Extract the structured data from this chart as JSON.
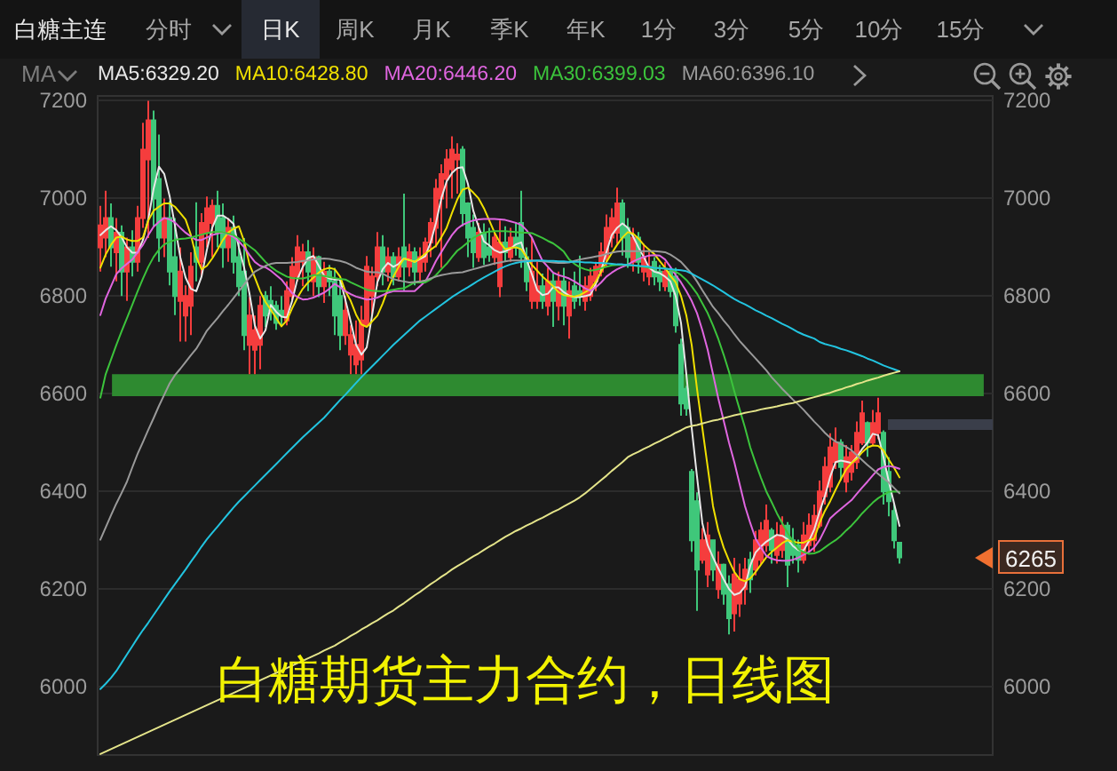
{
  "chart_data": {
    "type": "candlestick",
    "title": "白糖期货主力合约，日线图",
    "annotations": [
      "白糖主连",
      "分时",
      "日K",
      "周K",
      "月K",
      "季K",
      "年K",
      "1分",
      "3分",
      "5分",
      "10分",
      "15分",
      "MA",
      "6265"
    ],
    "categories": [
      null,
      null,
      null,
      null,
      null,
      null,
      null,
      null,
      null,
      null,
      null,
      null,
      null,
      null,
      null,
      null,
      null,
      null,
      null,
      null,
      null,
      null,
      null,
      null,
      null,
      null,
      null,
      null,
      null,
      null,
      null,
      null,
      null,
      null,
      null,
      null,
      null,
      null,
      null,
      null,
      null,
      null,
      null,
      null,
      null,
      null,
      null,
      null,
      null,
      null,
      null,
      null,
      null,
      null,
      null,
      null,
      null,
      null,
      null,
      null,
      null,
      null,
      null,
      null,
      null,
      null,
      null,
      null,
      null,
      null,
      null,
      null,
      null,
      null,
      null,
      null,
      null,
      null,
      null,
      null,
      null,
      null,
      null,
      null,
      null,
      null,
      null,
      null,
      null,
      null,
      null,
      null,
      null,
      null,
      null,
      null,
      null,
      null,
      null,
      null,
      null,
      null,
      null,
      null,
      null,
      null,
      null,
      null,
      null,
      null,
      null,
      null,
      null,
      null,
      null,
      null,
      null,
      null,
      null,
      null,
      null,
      null,
      null,
      null,
      null,
      null,
      null,
      null,
      null,
      null,
      null,
      null,
      null,
      null,
      null,
      null,
      null,
      null,
      null,
      null,
      null,
      null,
      null,
      null,
      null,
      null,
      null,
      null,
      null,
      null,
      null
    ],
    "ohlc": [
      [
        6900,
        6985,
        6850,
        6945
      ],
      [
        6920,
        7016,
        6880,
        6960
      ],
      [
        6960,
        6990,
        6860,
        6900
      ],
      [
        6890,
        6960,
        6830,
        6930
      ],
      [
        6930,
        6945,
        6800,
        6850
      ],
      [
        6850,
        6920,
        6790,
        6900
      ],
      [
        6900,
        6935,
        6840,
        6870
      ],
      [
        6870,
        6985,
        6850,
        6960
      ],
      [
        6960,
        7155,
        6940,
        7100
      ],
      [
        7080,
        7200,
        6919,
        7160
      ],
      [
        7160,
        7180,
        6943,
        7000
      ],
      [
        7040,
        7131,
        6870,
        6920
      ],
      [
        6920,
        7000,
        6880,
        6960
      ],
      [
        6960,
        6995,
        6822,
        6850
      ],
      [
        6880,
        6960,
        6761,
        6800
      ],
      [
        6790,
        6900,
        6707,
        6850
      ],
      [
        6760,
        6822,
        6707,
        6800
      ],
      [
        6780,
        6890,
        6720,
        6860
      ],
      [
        6900,
        6992,
        6830,
        6870
      ],
      [
        6870,
        6970,
        6840,
        6950
      ],
      [
        6930,
        7004,
        6900,
        6980
      ],
      [
        6950,
        6998,
        6880,
        6985
      ],
      [
        6985,
        7016,
        6900,
        6930
      ],
      [
        6960,
        6990,
        6858,
        6900
      ],
      [
        6900,
        6960,
        6870,
        6940
      ],
      [
        6940,
        6965,
        6846,
        6870
      ],
      [
        6880,
        6919,
        6800,
        6820
      ],
      [
        6850,
        6919,
        6689,
        6720
      ],
      [
        6700,
        6798,
        6640,
        6760
      ],
      [
        6690,
        6760,
        6640,
        6730
      ],
      [
        6700,
        6800,
        6650,
        6780
      ],
      [
        6800,
        6810,
        6737,
        6760
      ],
      [
        6790,
        6820,
        6750,
        6770
      ],
      [
        6780,
        6790,
        6731,
        6745
      ],
      [
        6770,
        6800,
        6740,
        6760
      ],
      [
        6750,
        6830,
        6740,
        6810
      ],
      [
        6800,
        6880,
        6790,
        6860
      ],
      [
        6840,
        6925,
        6830,
        6900
      ],
      [
        6870,
        6907,
        6820,
        6890
      ],
      [
        6890,
        6915,
        6810,
        6850
      ],
      [
        6830,
        6900,
        6800,
        6880
      ],
      [
        6880,
        6883,
        6798,
        6820
      ],
      [
        6820,
        6870,
        6786,
        6850
      ],
      [
        6850,
        6864,
        6800,
        6830
      ],
      [
        6830,
        6858,
        6720,
        6760
      ],
      [
        6800,
        6834,
        6689,
        6720
      ],
      [
        6720,
        6800,
        6700,
        6770
      ],
      [
        6680,
        6740,
        6640,
        6720
      ],
      [
        6660,
        6750,
        6640,
        6700
      ],
      [
        6670,
        6780,
        6640,
        6750
      ],
      [
        6740,
        6882,
        6737,
        6860
      ],
      [
        6800,
        6860,
        6760,
        6840
      ],
      [
        6840,
        6931,
        6820,
        6900
      ],
      [
        6900,
        6925,
        6822,
        6850
      ],
      [
        6850,
        6900,
        6830,
        6880
      ],
      [
        6880,
        6890,
        6822,
        6840
      ],
      [
        6840,
        6900,
        6830,
        6880
      ],
      [
        6900,
        7010,
        6810,
        6860
      ],
      [
        6860,
        6907,
        6840,
        6890
      ],
      [
        6890,
        6900,
        6822,
        6850
      ],
      [
        6850,
        6900,
        6830,
        6880
      ],
      [
        6870,
        6920,
        6850,
        6910
      ],
      [
        6910,
        6960,
        6880,
        6950
      ],
      [
        6940,
        7040,
        6900,
        7020
      ],
      [
        7000,
        7070,
        6858,
        7050
      ],
      [
        7040,
        7101,
        6980,
        7080
      ],
      [
        7060,
        7127,
        7000,
        7100
      ],
      [
        7080,
        7113,
        7010,
        7090
      ],
      [
        7100,
        7107,
        6943,
        6970
      ],
      [
        6990,
        6992,
        6880,
        6920
      ],
      [
        6940,
        6967,
        6858,
        6890
      ],
      [
        6880,
        6950,
        6870,
        6930
      ],
      [
        6930,
        6949,
        6864,
        6880
      ],
      [
        6900,
        6940,
        6870,
        6885
      ],
      [
        6880,
        6931,
        6864,
        6920
      ],
      [
        6820,
        6955,
        6798,
        6910
      ],
      [
        6910,
        6943,
        6870,
        6890
      ],
      [
        6880,
        6940,
        6870,
        6920
      ],
      [
        6920,
        6950,
        6883,
        6900
      ],
      [
        6950,
        7016,
        6858,
        6880
      ],
      [
        6880,
        6900,
        6810,
        6830
      ],
      [
        6790,
        6919,
        6774,
        6850
      ],
      [
        6790,
        6870,
        6774,
        6820
      ],
      [
        6820,
        6846,
        6774,
        6790
      ],
      [
        6780,
        6858,
        6760,
        6830
      ],
      [
        6830,
        6846,
        6737,
        6790
      ],
      [
        6780,
        6850,
        6750,
        6830
      ],
      [
        6830,
        6858,
        6740,
        6780
      ],
      [
        6760,
        6830,
        6713,
        6810
      ],
      [
        6820,
        6850,
        6774,
        6790
      ],
      [
        6810,
        6883,
        6780,
        6800
      ],
      [
        6790,
        6840,
        6770,
        6820
      ],
      [
        6800,
        6858,
        6790,
        6840
      ],
      [
        6830,
        6870,
        6810,
        6860
      ],
      [
        6850,
        6910,
        6840,
        6890
      ],
      [
        6880,
        6967,
        6860,
        6940
      ],
      [
        6920,
        6980,
        6900,
        6960
      ],
      [
        6930,
        7022,
        6907,
        6990
      ],
      [
        6990,
        6998,
        6883,
        6920
      ],
      [
        6940,
        6960,
        6858,
        6880
      ],
      [
        6870,
        6940,
        6850,
        6920
      ],
      [
        6920,
        6931,
        6846,
        6870
      ],
      [
        6850,
        6907,
        6830,
        6880
      ],
      [
        6840,
        6890,
        6822,
        6860
      ],
      [
        6870,
        6880,
        6822,
        6840
      ],
      [
        6850,
        6864,
        6810,
        6830
      ],
      [
        6820,
        6870,
        6810,
        6850
      ],
      [
        6850,
        6858,
        6798,
        6810
      ],
      [
        6840,
        6858,
        6725,
        6740
      ],
      [
        6700,
        6713,
        6555,
        6580
      ],
      [
        6610,
        6616,
        6555,
        6570
      ],
      [
        6440,
        6446,
        6276,
        6300
      ],
      [
        6380,
        6398,
        6155,
        6240
      ],
      [
        6260,
        6325,
        6252,
        6300
      ],
      [
        6230,
        6337,
        6204,
        6310
      ],
      [
        6300,
        6301,
        6216,
        6240
      ],
      [
        6200,
        6277,
        6180,
        6250
      ],
      [
        6250,
        6252,
        6168,
        6190
      ],
      [
        6210,
        6228,
        6107,
        6140
      ],
      [
        6150,
        6264,
        6113,
        6230
      ],
      [
        6170,
        6252,
        6143,
        6220
      ],
      [
        6200,
        6264,
        6168,
        6240
      ],
      [
        6260,
        6276,
        6192,
        6220
      ],
      [
        6240,
        6319,
        6228,
        6300
      ],
      [
        6260,
        6337,
        6250,
        6320
      ],
      [
        6290,
        6373,
        6276,
        6340
      ],
      [
        6320,
        6325,
        6252,
        6280
      ],
      [
        6270,
        6337,
        6252,
        6310
      ],
      [
        6280,
        6349,
        6264,
        6330
      ],
      [
        6330,
        6337,
        6204,
        6250
      ],
      [
        6300,
        6325,
        6252,
        6270
      ],
      [
        6290,
        6301,
        6234,
        6260
      ],
      [
        6260,
        6337,
        6252,
        6310
      ],
      [
        6290,
        6355,
        6276,
        6330
      ],
      [
        6300,
        6373,
        6276,
        6350
      ],
      [
        6330,
        6422,
        6325,
        6400
      ],
      [
        6390,
        6471,
        6373,
        6450
      ],
      [
        6410,
        6519,
        6398,
        6490
      ],
      [
        6460,
        6531,
        6446,
        6500
      ],
      [
        6500,
        6507,
        6422,
        6450
      ],
      [
        6420,
        6495,
        6398,
        6470
      ],
      [
        6440,
        6495,
        6422,
        6480
      ],
      [
        6460,
        6543,
        6446,
        6520
      ],
      [
        6500,
        6586,
        6495,
        6560
      ],
      [
        6540,
        6543,
        6471,
        6500
      ],
      [
        6500,
        6567,
        6495,
        6540
      ],
      [
        6520,
        6592,
        6507,
        6560
      ],
      [
        6520,
        6525,
        6373,
        6400
      ],
      [
        6440,
        6470,
        6349,
        6380
      ],
      [
        6360,
        6373,
        6283,
        6300
      ],
      [
        6295,
        6295,
        6252,
        6265
      ]
    ],
    "colors": [
      "#f53d3d",
      "#f53d3d",
      "#3fc77a",
      "#f53d3d",
      "#3fc77a",
      "#f53d3d",
      "#3fc77a",
      "#f53d3d",
      "#f53d3d",
      "#f53d3d",
      "#3fc77a",
      "#3fc77a",
      "#f53d3d",
      "#3fc77a",
      "#3fc77a",
      "#f53d3d",
      "#f53d3d",
      "#f53d3d",
      "#3fc77a",
      "#f53d3d",
      "#f53d3d",
      "#f53d3d",
      "#3fc77a",
      "#3fc77a",
      "#f53d3d",
      "#3fc77a",
      "#3fc77a",
      "#3fc77a",
      "#f53d3d",
      "#f53d3d",
      "#f53d3d",
      "#3fc77a",
      "#3fc77a",
      "#3fc77a",
      "#3fc77a",
      "#f53d3d",
      "#f53d3d",
      "#f53d3d",
      "#f53d3d",
      "#3fc77a",
      "#f53d3d",
      "#3fc77a",
      "#f53d3d",
      "#3fc77a",
      "#3fc77a",
      "#3fc77a",
      "#f53d3d",
      "#f53d3d",
      "#f53d3d",
      "#f53d3d",
      "#f53d3d",
      "#f53d3d",
      "#f53d3d",
      "#3fc77a",
      "#f53d3d",
      "#3fc77a",
      "#f53d3d",
      "#3fc77a",
      "#f53d3d",
      "#3fc77a",
      "#f53d3d",
      "#f53d3d",
      "#f53d3d",
      "#f53d3d",
      "#f53d3d",
      "#f53d3d",
      "#f53d3d",
      "#f53d3d",
      "#3fc77a",
      "#3fc77a",
      "#3fc77a",
      "#f53d3d",
      "#3fc77a",
      "#3fc77a",
      "#f53d3d",
      "#f53d3d",
      "#3fc77a",
      "#f53d3d",
      "#3fc77a",
      "#3fc77a",
      "#3fc77a",
      "#f53d3d",
      "#f53d3d",
      "#3fc77a",
      "#f53d3d",
      "#3fc77a",
      "#f53d3d",
      "#3fc77a",
      "#f53d3d",
      "#3fc77a",
      "#3fc77a",
      "#f53d3d",
      "#f53d3d",
      "#f53d3d",
      "#f53d3d",
      "#f53d3d",
      "#f53d3d",
      "#f53d3d",
      "#3fc77a",
      "#3fc77a",
      "#f53d3d",
      "#3fc77a",
      "#f53d3d",
      "#f53d3d",
      "#3fc77a",
      "#3fc77a",
      "#f53d3d",
      "#3fc77a",
      "#3fc77a",
      "#3fc77a",
      "#3fc77a",
      "#3fc77a",
      "#3fc77a",
      "#f53d3d",
      "#f53d3d",
      "#3fc77a",
      "#f53d3d",
      "#3fc77a",
      "#3fc77a",
      "#f53d3d",
      "#f53d3d",
      "#f53d3d",
      "#3fc77a",
      "#f53d3d",
      "#f53d3d",
      "#f53d3d",
      "#3fc77a",
      "#f53d3d",
      "#f53d3d",
      "#3fc77a",
      "#3fc77a",
      "#3fc77a",
      "#f53d3d",
      "#f53d3d",
      "#f53d3d",
      "#f53d3d",
      "#f53d3d",
      "#f53d3d",
      "#f53d3d",
      "#3fc77a",
      "#f53d3d",
      "#f53d3d",
      "#f53d3d",
      "#f53d3d",
      "#3fc77a",
      "#f53d3d",
      "#f53d3d",
      "#3fc77a",
      "#3fc77a",
      "#3fc77a",
      "#3fc77a"
    ],
    "series": [
      {
        "type": "line",
        "name": "MA5:6329.20",
        "color": "#e8e8e8",
        "values": [
          6925,
          6935,
          6943,
          6935,
          6920,
          6900,
          6889,
          6889,
          6915,
          6957,
          7020,
          7065,
          7050,
          7005,
          6945,
          6880,
          6838,
          6815,
          6810,
          6840,
          6895,
          6940,
          6965,
          6965,
          6958,
          6948,
          6900,
          6858,
          6805,
          6740,
          6713,
          6730,
          6782,
          6768,
          6758,
          6756,
          6790,
          6835,
          6860,
          6878,
          6882,
          6862,
          6842,
          6836,
          6834,
          6834,
          6792,
          6748,
          6700,
          6680,
          6695,
          6760,
          6828,
          6855,
          6868,
          6860,
          6866,
          6877,
          6874,
          6870,
          6876,
          6882,
          6910,
          6950,
          7000,
          7035,
          7052,
          7062,
          7064,
          7030,
          6975,
          6942,
          6912,
          6904,
          6894,
          6889,
          6892,
          6897,
          6906,
          6910,
          6875,
          6845,
          6812,
          6802,
          6805,
          6818,
          6818,
          6808,
          6801,
          6798,
          6798,
          6800,
          6803,
          6825,
          6852,
          6890,
          6925,
          6940,
          6949,
          6940,
          6922,
          6900,
          6880,
          6858,
          6850,
          6847,
          6840,
          6830,
          6800,
          6745,
          6640,
          6530,
          6430,
          6335,
          6290,
          6265,
          6242,
          6220,
          6200,
          6188,
          6192,
          6205,
          6248,
          6275,
          6287,
          6297,
          6304,
          6311,
          6309,
          6302,
          6288,
          6280,
          6279,
          6298,
          6322,
          6358,
          6390,
          6430,
          6460,
          6463,
          6461,
          6458,
          6470,
          6487,
          6500,
          6518,
          6515,
          6470,
          6420,
          6375,
          6329.2
        ]
      },
      {
        "type": "line",
        "name": "MA10:6428.80",
        "color": "#f0e000",
        "values": [
          6858,
          6885,
          6905,
          6920,
          6922,
          6916,
          6913,
          6913,
          6920,
          6955,
          6975,
          6983,
          6990,
          6990,
          6983,
          6970,
          6957,
          6925,
          6880,
          6855,
          6862,
          6877,
          6895,
          6915,
          6930,
          6938,
          6943,
          6912,
          6865,
          6838,
          6810,
          6788,
          6772,
          6755,
          6738,
          6750,
          6775,
          6797,
          6815,
          6828,
          6838,
          6848,
          6855,
          6858,
          6855,
          6840,
          6810,
          6790,
          6762,
          6742,
          6737,
          6748,
          6760,
          6785,
          6815,
          6840,
          6860,
          6877,
          6874,
          6870,
          6878,
          6887,
          6895,
          6903,
          6920,
          6940,
          6970,
          6998,
          7018,
          7022,
          7012,
          7000,
          6980,
          6955,
          6930,
          6910,
          6896,
          6899,
          6900,
          6896,
          6880,
          6864,
          6852,
          6840,
          6830,
          6820,
          6808,
          6802,
          6800,
          6799,
          6802,
          6808,
          6814,
          6830,
          6850,
          6870,
          6888,
          6905,
          6920,
          6931,
          6928,
          6918,
          6905,
          6895,
          6886,
          6872,
          6858,
          6842,
          6828,
          6800,
          6760,
          6700,
          6610,
          6530,
          6450,
          6370,
          6320,
          6285,
          6258,
          6235,
          6220,
          6216,
          6222,
          6235,
          6250,
          6265,
          6276,
          6285,
          6294,
          6300,
          6297,
          6295,
          6295,
          6300,
          6303,
          6335,
          6360,
          6380,
          6403,
          6425,
          6445,
          6458,
          6467,
          6480,
          6490,
          6494,
          6493,
          6484,
          6465,
          6448,
          6428.8
        ]
      },
      {
        "type": "line",
        "name": "MA20:6446.20",
        "color": "#e066e0",
        "values": [
          6761,
          6795,
          6820,
          6845,
          6857,
          6866,
          6875,
          6890,
          6905,
          6925,
          6942,
          6952,
          6960,
          6957,
          6951,
          6940,
          6930,
          6922,
          6915,
          6915,
          6920,
          6925,
          6928,
          6931,
          6927,
          6921,
          6912,
          6900,
          6884,
          6870,
          6862,
          6859,
          6852,
          6843,
          6834,
          6820,
          6806,
          6798,
          6793,
          6794,
          6797,
          6802,
          6807,
          6815,
          6825,
          6818,
          6810,
          6804,
          6799,
          6796,
          6793,
          6794,
          6797,
          6802,
          6807,
          6810,
          6810,
          6810,
          6810,
          6810,
          6820,
          6830,
          6850,
          6872,
          6890,
          6908,
          6925,
          6938,
          6946,
          6951,
          6955,
          6957,
          6958,
          6958,
          6958,
          6957,
          6956,
          6953,
          6950,
          6946,
          6935,
          6920,
          6895,
          6872,
          6860,
          6848,
          6843,
          6840,
          6836,
          6830,
          6823,
          6816,
          6811,
          6818,
          6828,
          6840,
          6848,
          6855,
          6860,
          6864,
          6871,
          6876,
          6880,
          6883,
          6884,
          6883,
          6875,
          6860,
          6843,
          6828,
          6810,
          6790,
          6765,
          6730,
          6690,
          6640,
          6590,
          6545,
          6500,
          6460,
          6415,
          6370,
          6335,
          6303,
          6285,
          6268,
          6262,
          6259,
          6258,
          6258,
          6260,
          6264,
          6270,
          6276,
          6285,
          6300,
          6322,
          6345,
          6355,
          6364,
          6373,
          6382,
          6395,
          6408,
          6420,
          6433,
          6445,
          6450,
          6452,
          6450,
          6446.2
        ]
      },
      {
        "type": "line",
        "name": "MA30:6399.03",
        "color": "#3cc43c",
        "values": [
          6592,
          6640,
          6670,
          6700,
          6728,
          6755,
          6782,
          6810,
          6836,
          6860,
          6880,
          6895,
          6906,
          6911,
          6915,
          6917,
          6918,
          6920,
          6923,
          6926,
          6929,
          6931,
          6931,
          6931,
          6928,
          6925,
          6918,
          6910,
          6902,
          6894,
          6882,
          6870,
          6860,
          6852,
          6846,
          6840,
          6837,
          6836,
          6836,
          6839,
          6843,
          6843,
          6841,
          6839,
          6837,
          6835,
          6834,
          6828,
          6823,
          6818,
          6813,
          6811,
          6810,
          6810,
          6811,
          6813,
          6815,
          6816,
          6822,
          6828,
          6828,
          6828,
          6834,
          6843,
          6855,
          6866,
          6880,
          6893,
          6901,
          6910,
          6919,
          6925,
          6930,
          6932,
          6933,
          6933,
          6933,
          6932,
          6931,
          6930,
          6930,
          6929,
          6924,
          6919,
          6913,
          6908,
          6900,
          6891,
          6875,
          6866,
          6859,
          6855,
          6852,
          6854,
          6857,
          6860,
          6863,
          6864,
          6864,
          6864,
          6863,
          6861,
          6860,
          6858,
          6858,
          6858,
          6857,
          6854,
          6850,
          6843,
          6833,
          6820,
          6805,
          6785,
          6765,
          6740,
          6712,
          6680,
          6645,
          6605,
          6568,
          6531,
          6490,
          6458,
          6428,
          6400,
          6378,
          6355,
          6335,
          6315,
          6298,
          6282,
          6276,
          6272,
          6273,
          6277,
          6285,
          6293,
          6300,
          6309,
          6320,
          6330,
          6342,
          6355,
          6366,
          6377,
          6386,
          6393,
          6399,
          6400,
          6399.03
        ]
      },
      {
        "type": "line",
        "name": "MA60:6396.10",
        "color": "#9a9a9a",
        "values": [
          6301,
          6326,
          6351,
          6375,
          6397,
          6420,
          6449,
          6477,
          6501,
          6526,
          6550,
          6575,
          6598,
          6621,
          6638,
          6651,
          6665,
          6679,
          6692,
          6710,
          6729,
          6742,
          6755,
          6769,
          6782,
          6796,
          6810,
          6824,
          6838,
          6850,
          6856,
          6862,
          6866,
          6868,
          6868,
          6868,
          6869,
          6870,
          6872,
          6873,
          6875,
          6876,
          6877,
          6876,
          6874,
          6872,
          6869,
          6864,
          6858,
          6854,
          6850,
          6849,
          6849,
          6846,
          6840,
          6835,
          6832,
          6830,
          6828,
          6829,
          6830,
          6832,
          6836,
          6840,
          6843,
          6845,
          6847,
          6848,
          6849,
          6852,
          6855,
          6858,
          6861,
          6864,
          6867,
          6869,
          6871,
          6873,
          6873,
          6873,
          6873,
          6873,
          6872,
          6871,
          6870,
          6869,
          6868,
          6868,
          6869,
          6872,
          6875,
          6877,
          6879,
          6881,
          6883,
          6886,
          6889,
          6891,
          6892,
          6892,
          6892,
          6892,
          6892,
          6892,
          6892,
          6891,
          6890,
          6885,
          6878,
          6870,
          6858,
          6846,
          6830,
          6812,
          6795,
          6778,
          6765,
          6750,
          6737,
          6722,
          6708,
          6696,
          6684,
          6672,
          6660,
          6648,
          6634,
          6622,
          6610,
          6599,
          6588,
          6578,
          6567,
          6555,
          6543,
          6532,
          6520,
          6510,
          6502,
          6497,
          6491,
          6484,
          6474,
          6464,
          6454,
          6445,
          6436,
          6427,
          6418,
          6407,
          6396.1
        ]
      },
      {
        "type": "line",
        "color": "#22c4e0",
        "values": [
          5995,
          6006,
          6018,
          6032,
          6049,
          6066,
          6083,
          6100,
          6116,
          6131,
          6147,
          6163,
          6179,
          6195,
          6210,
          6225,
          6240,
          6256,
          6271,
          6287,
          6302,
          6315,
          6328,
          6341,
          6354,
          6367,
          6379,
          6390,
          6401,
          6412,
          6423,
          6434,
          6445,
          6456,
          6467,
          6478,
          6489,
          6500,
          6511,
          6521,
          6531,
          6541,
          6551,
          6563,
          6575,
          6587,
          6598,
          6610,
          6622,
          6634,
          6645,
          6656,
          6667,
          6678,
          6689,
          6700,
          6710,
          6720,
          6730,
          6740,
          6750,
          6758,
          6766,
          6774,
          6782,
          6790,
          6798,
          6805,
          6812,
          6818,
          6825,
          6832,
          6838,
          6844,
          6850,
          6856,
          6861,
          6865,
          6868,
          6870,
          6871,
          6872,
          6873,
          6873,
          6872,
          6872,
          6871,
          6871,
          6870,
          6870,
          6870,
          6869,
          6869,
          6868,
          6868,
          6867,
          6866,
          6865,
          6865,
          6864,
          6863,
          6862,
          6861,
          6860,
          6858,
          6857,
          6856,
          6855,
          6854,
          6853,
          6851,
          6846,
          6840,
          6834,
          6828,
          6822,
          6815,
          6808,
          6801,
          6794,
          6788,
          6783,
          6777,
          6771,
          6766,
          6760,
          6755,
          6749,
          6743,
          6738,
          6732,
          6726,
          6721,
          6717,
          6713,
          6706,
          6702,
          6699,
          6696,
          6692,
          6689,
          6685,
          6681,
          6677,
          6672,
          6668,
          6663,
          6658,
          6654,
          6650,
          6646
        ]
      },
      {
        "type": "line",
        "color": "#e4e48a",
        "values": [
          5862,
          5867,
          5872,
          5877,
          5882,
          5887,
          5892,
          5897,
          5902,
          5907,
          5912,
          5917,
          5922,
          5927,
          5932,
          5937,
          5942,
          5947,
          5952,
          5957,
          5962,
          5967,
          5972,
          5977,
          5982,
          5987,
          5992,
          5997,
          6002,
          6007,
          6013,
          6018,
          6023,
          6028,
          6033,
          6038,
          6043,
          6048,
          6053,
          6058,
          6063,
          6068,
          6074,
          6079,
          6084,
          6091,
          6097,
          6104,
          6110,
          6117,
          6123,
          6130,
          6136,
          6143,
          6150,
          6156,
          6164,
          6171,
          6179,
          6187,
          6194,
          6202,
          6210,
          6217,
          6225,
          6232,
          6240,
          6247,
          6253,
          6260,
          6267,
          6273,
          6280,
          6287,
          6293,
          6300,
          6307,
          6313,
          6319,
          6324,
          6330,
          6335,
          6341,
          6346,
          6352,
          6358,
          6363,
          6369,
          6375,
          6381,
          6388,
          6396,
          6405,
          6414,
          6423,
          6432,
          6442,
          6451,
          6460,
          6470,
          6476,
          6481,
          6487,
          6492,
          6498,
          6503,
          6509,
          6514,
          6520,
          6525,
          6531,
          6534,
          6536,
          6539,
          6542,
          6545,
          6547,
          6550,
          6553,
          6556,
          6558,
          6561,
          6563,
          6565,
          6568,
          6570,
          6572,
          6574,
          6577,
          6579,
          6581,
          6584,
          6587,
          6590,
          6593,
          6596,
          6599,
          6602,
          6606,
          6609,
          6613,
          6616,
          6620,
          6623,
          6627,
          6630,
          6633,
          6637,
          6640,
          6643,
          6646
        ]
      }
    ],
    "ylim": [
      5860,
      7210
    ],
    "yticks": [
      6000,
      6200,
      6400,
      6600,
      6800,
      7000,
      7200
    ],
    "y2lim": [
      5860,
      7210
    ],
    "y2ticks": [
      6000,
      6200,
      6400,
      6600,
      6800,
      7000,
      7200
    ],
    "bands": [
      {
        "axis": "y",
        "from": 6595,
        "to": 6640,
        "color": "#2e8a30"
      }
    ],
    "grid": "y",
    "legend": "top left",
    "tick_labels": "y",
    "marker": "none",
    "line_style": "solid"
  }
}
